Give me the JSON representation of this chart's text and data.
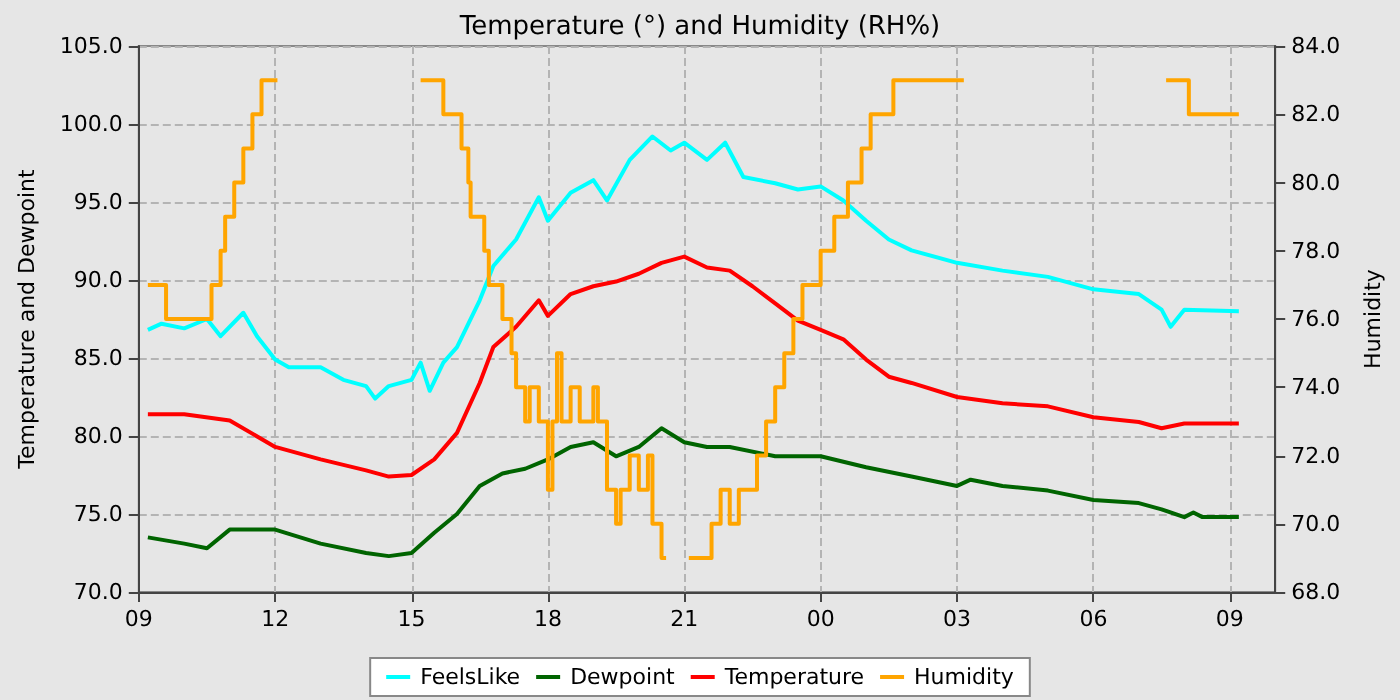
{
  "chart_data": {
    "type": "line",
    "title": "Temperature (°) and Humidity (RH%)",
    "ylabel": "Temperature and Dewpoint",
    "y2label": "Humidity",
    "xlim": [
      9,
      34
    ],
    "xticks": [
      {
        "value": 9,
        "label": "09"
      },
      {
        "value": 12,
        "label": "12"
      },
      {
        "value": 15,
        "label": "15"
      },
      {
        "value": 18,
        "label": "18"
      },
      {
        "value": 21,
        "label": "21"
      },
      {
        "value": 24,
        "label": "00"
      },
      {
        "value": 27,
        "label": "03"
      },
      {
        "value": 30,
        "label": "06"
      },
      {
        "value": 33,
        "label": "09"
      }
    ],
    "ylim": [
      70,
      105
    ],
    "yticks": [
      {
        "value": 70,
        "label": "70.0"
      },
      {
        "value": 75,
        "label": "75.0"
      },
      {
        "value": 80,
        "label": "80.0"
      },
      {
        "value": 85,
        "label": "85.0"
      },
      {
        "value": 90,
        "label": "90.0"
      },
      {
        "value": 95,
        "label": "95.0"
      },
      {
        "value": 100,
        "label": "100.0"
      },
      {
        "value": 105,
        "label": "105.0"
      }
    ],
    "y2lim": [
      68,
      84
    ],
    "y2ticks": [
      {
        "value": 68,
        "label": "68.0"
      },
      {
        "value": 70,
        "label": "70.0"
      },
      {
        "value": 72,
        "label": "72.0"
      },
      {
        "value": 74,
        "label": "74.0"
      },
      {
        "value": 76,
        "label": "76.0"
      },
      {
        "value": 78,
        "label": "78.0"
      },
      {
        "value": 80,
        "label": "80.0"
      },
      {
        "value": 82,
        "label": "82.0"
      },
      {
        "value": 84,
        "label": "84.0"
      }
    ],
    "grid": true,
    "legend": "bottom",
    "marker": "none",
    "line_style": "solid",
    "series": [
      {
        "name": "FeelsLike",
        "color": "#00ffff",
        "x": [
          9.2,
          9.5,
          10,
          10.5,
          10.8,
          11.3,
          11.6,
          12,
          12.3,
          13,
          13.5,
          14,
          14.2,
          14.5,
          15,
          15.2,
          15.4,
          15.7,
          16,
          16.5,
          16.8,
          17.3,
          17.8,
          18,
          18.5,
          19,
          19.3,
          19.8,
          20.3,
          20.7,
          21,
          21.5,
          21.9,
          22.3,
          23,
          23.5,
          24,
          24.5,
          25,
          25.5,
          26,
          27,
          28,
          29,
          30,
          31,
          31.5,
          31.7,
          32,
          33.2
        ],
        "values": [
          86.8,
          87.2,
          86.9,
          87.5,
          86.4,
          87.9,
          86.4,
          84.9,
          84.4,
          84.4,
          83.6,
          83.2,
          82.4,
          83.2,
          83.6,
          84.7,
          82.9,
          84.7,
          85.7,
          88.7,
          90.9,
          92.6,
          95.3,
          93.8,
          95.6,
          96.4,
          95.1,
          97.7,
          99.2,
          98.3,
          98.8,
          97.7,
          98.8,
          96.6,
          96.2,
          95.8,
          96.0,
          95.1,
          93.8,
          92.6,
          91.9,
          91.1,
          90.6,
          90.2,
          89.4,
          89.1,
          88.1,
          87.0,
          88.1,
          88.0
        ]
      },
      {
        "name": "Dewpoint",
        "color": "#006400",
        "x": [
          9.2,
          10,
          10.5,
          11,
          12,
          13,
          14,
          14.5,
          15,
          15.5,
          16,
          16.5,
          17,
          17.5,
          18,
          18.5,
          19,
          19.5,
          20,
          20.5,
          21,
          21.5,
          22,
          23,
          24,
          25,
          26,
          27,
          27.3,
          28,
          29,
          30,
          31,
          31.5,
          32,
          32.2,
          32.4,
          33.2
        ],
        "values": [
          73.5,
          73.1,
          72.8,
          74.0,
          74.0,
          73.1,
          72.5,
          72.3,
          72.5,
          73.8,
          75.0,
          76.8,
          77.6,
          77.9,
          78.5,
          79.3,
          79.6,
          78.7,
          79.3,
          80.5,
          79.6,
          79.3,
          79.3,
          78.7,
          78.7,
          78.0,
          77.4,
          76.8,
          77.2,
          76.8,
          76.5,
          75.9,
          75.7,
          75.3,
          74.8,
          75.1,
          74.8,
          74.8
        ]
      },
      {
        "name": "Temperature",
        "color": "#ff0000",
        "x": [
          9.2,
          10,
          11,
          12,
          13,
          14,
          14.5,
          15,
          15.5,
          16,
          16.5,
          16.8,
          17.3,
          17.8,
          18,
          18.5,
          19,
          19.5,
          20,
          20.5,
          21,
          21.5,
          22,
          22.5,
          23,
          23.5,
          24,
          24.5,
          25,
          25.5,
          26,
          27,
          28,
          29,
          30,
          31,
          31.5,
          32,
          33.2
        ],
        "values": [
          81.4,
          81.4,
          81.0,
          79.3,
          78.5,
          77.8,
          77.4,
          77.5,
          78.5,
          80.2,
          83.4,
          85.7,
          87.0,
          88.7,
          87.7,
          89.1,
          89.6,
          89.9,
          90.4,
          91.1,
          91.5,
          90.8,
          90.6,
          89.6,
          88.5,
          87.4,
          86.8,
          86.2,
          84.9,
          83.8,
          83.4,
          82.5,
          82.1,
          81.9,
          81.2,
          80.9,
          80.5,
          80.8,
          80.8
        ]
      },
      {
        "name": "Humidity",
        "color": "#ffa500",
        "type": "step",
        "axis": "y2",
        "x": [
          9.2,
          9.6,
          10.6,
          10.8,
          10.9,
          11.1,
          11.3,
          11.5,
          11.7,
          12.0,
          12.05,
          15.15,
          15.2,
          15.7,
          16.1,
          16.25,
          16.3,
          16.6,
          16.7,
          17.0,
          17.2,
          17.3,
          17.5,
          17.6,
          17.8,
          18.0,
          18.1,
          18.2,
          18.3,
          18.5,
          18.7,
          19.0,
          19.1,
          19.3,
          19.5,
          19.6,
          19.8,
          20.0,
          20.2,
          20.3,
          20.5,
          20.6,
          21.1,
          21.5,
          21.6,
          21.8,
          22.0,
          22.2,
          22.5,
          22.6,
          22.8,
          23.0,
          23.2,
          23.4,
          23.6,
          24.0,
          24.3,
          24.6,
          24.9,
          25.1,
          25.6,
          27.1,
          27.15,
          31.55,
          31.6,
          32.1,
          33.2
        ],
        "values": [
          77,
          76,
          77,
          78,
          79,
          80,
          81,
          82,
          83,
          83,
          null,
          null,
          83,
          82,
          81,
          80,
          79,
          78,
          77,
          76,
          75,
          74,
          73,
          74,
          73,
          71,
          73,
          75,
          73,
          74,
          73,
          74,
          73,
          71,
          70,
          71,
          72,
          71,
          72,
          70,
          69,
          null,
          69,
          69,
          70,
          71,
          70,
          71,
          71,
          72,
          73,
          74,
          75,
          76,
          77,
          78,
          79,
          80,
          81,
          82,
          83,
          83,
          null,
          null,
          83,
          82,
          82
        ]
      }
    ]
  }
}
